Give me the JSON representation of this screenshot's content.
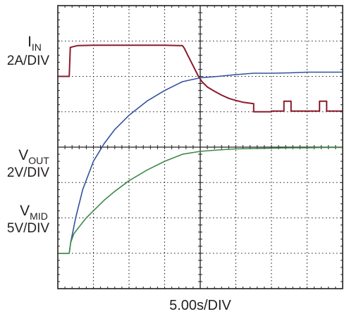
{
  "chart_data": {
    "type": "line",
    "title": "",
    "xlabel": "5.00s/DIV",
    "x_divisions": 8,
    "y_divisions": 8,
    "xlim": [
      0,
      8
    ],
    "ylim": [
      0,
      8
    ],
    "grid": true,
    "annotations": {
      "iin": {
        "sym": "I",
        "sub": "IN",
        "scale": "2A/DIV"
      },
      "vout": {
        "sym": "V",
        "sub": "OUT",
        "scale": "2V/DIV"
      },
      "vmid": {
        "sym": "V",
        "sub": "MID",
        "scale": "5V/DIV"
      }
    },
    "series": [
      {
        "color": "#8b1a2b",
        "x": [
          0,
          0.32,
          0.35,
          0.55,
          1.0,
          2.0,
          3.0,
          3.5,
          3.55,
          3.65,
          3.8,
          3.95,
          4.05,
          4.2,
          4.4,
          4.6,
          4.8,
          5.0,
          5.2,
          5.5,
          5.5,
          6.0,
          6.0,
          6.35,
          6.35,
          6.55,
          6.55,
          7.35,
          7.35,
          7.55,
          7.55,
          8.0
        ],
        "y": [
          6.0,
          6.0,
          6.82,
          6.87,
          6.88,
          6.88,
          6.88,
          6.87,
          6.8,
          6.6,
          6.3,
          6.0,
          5.85,
          5.7,
          5.58,
          5.47,
          5.38,
          5.32,
          5.27,
          5.23,
          5.0,
          5.0,
          5.02,
          5.02,
          5.3,
          5.3,
          5.02,
          5.02,
          5.3,
          5.3,
          5.02,
          5.02
        ]
      },
      {
        "color": "#33519c",
        "x": [
          0,
          0.32,
          0.36,
          0.5,
          0.7,
          1.0,
          1.3,
          1.6,
          2.0,
          2.5,
          3.0,
          3.5,
          4.0,
          4.5,
          5.0,
          5.5,
          6.0,
          6.5,
          7.0,
          7.5,
          8.0
        ],
        "y": [
          1.0,
          1.0,
          1.3,
          2.0,
          2.8,
          3.6,
          4.1,
          4.5,
          4.9,
          5.3,
          5.6,
          5.85,
          5.96,
          6.0,
          6.05,
          6.09,
          6.09,
          6.1,
          6.12,
          6.12,
          6.12
        ]
      },
      {
        "color": "#3d8a4a",
        "x": [
          0,
          0.32,
          0.36,
          0.45,
          0.6,
          0.8,
          1.0,
          1.3,
          1.6,
          2.0,
          2.5,
          3.0,
          3.5,
          4.0,
          4.5,
          5.0,
          5.5,
          6.0,
          6.5,
          7.0,
          7.5,
          8.0
        ],
        "y": [
          1.0,
          1.0,
          1.3,
          1.55,
          1.75,
          2.0,
          2.2,
          2.5,
          2.75,
          3.05,
          3.35,
          3.6,
          3.8,
          3.88,
          3.92,
          3.95,
          3.96,
          3.97,
          3.98,
          3.98,
          3.99,
          3.99
        ]
      }
    ]
  }
}
